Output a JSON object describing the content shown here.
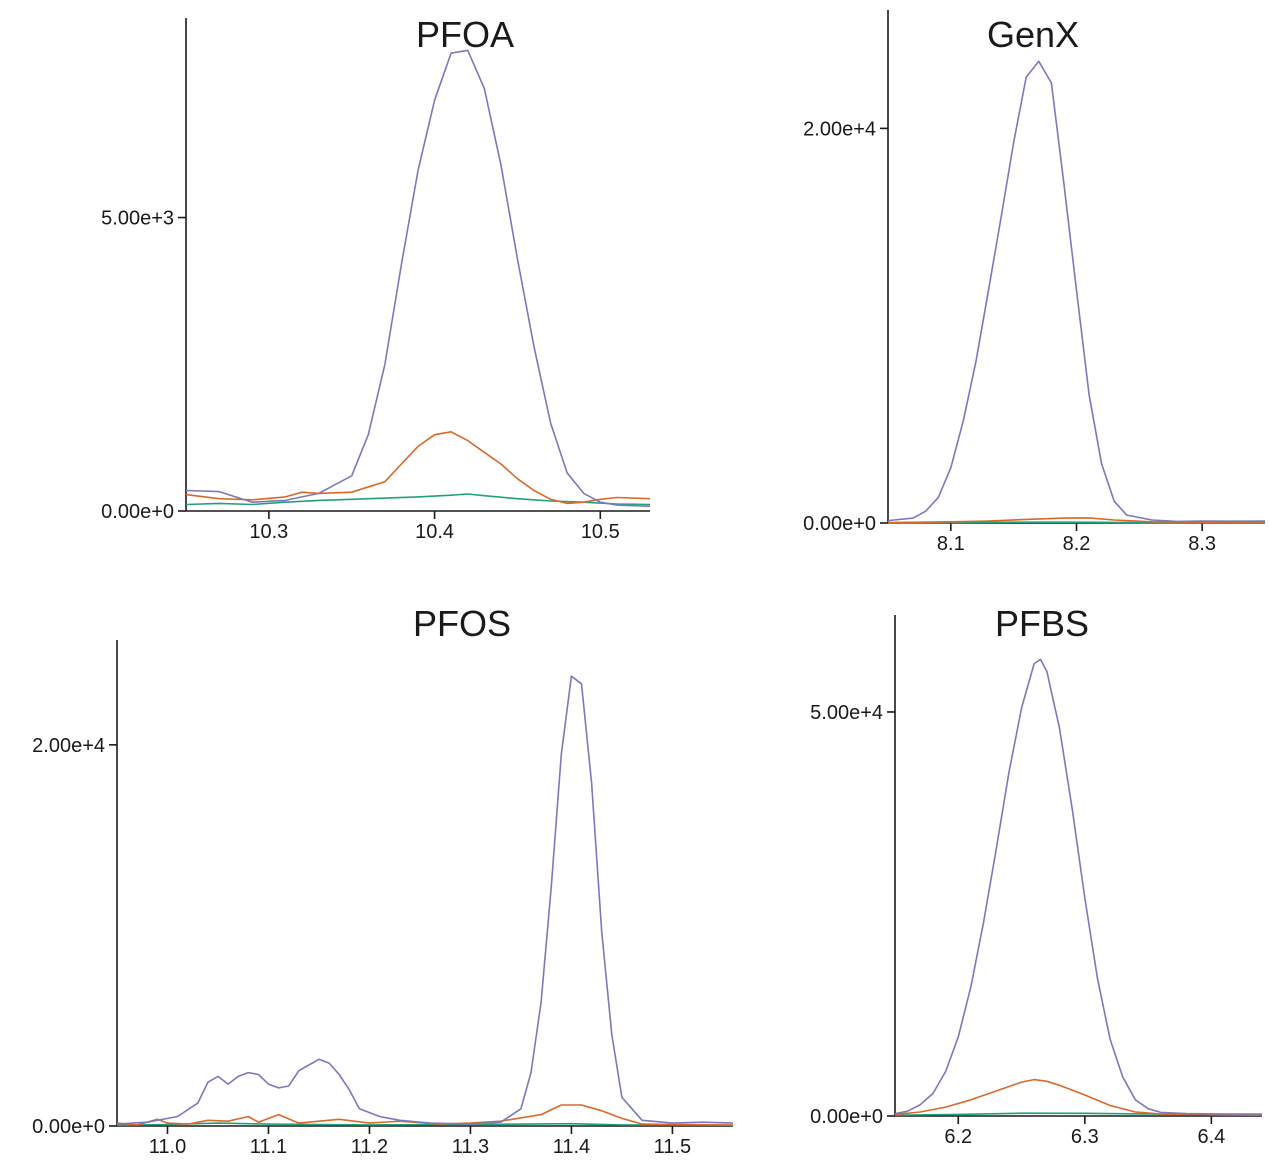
{
  "colors": {
    "series_1": "#7b78bd",
    "series_2": "#d9692a",
    "series_3": "#22a07e"
  },
  "chart_data": [
    {
      "type": "line",
      "title": "PFOA",
      "xlim": [
        10.25,
        10.53
      ],
      "ylim": [
        0,
        8400
      ],
      "x_ticks": [
        10.3,
        10.4,
        10.5
      ],
      "x_tick_labels": [
        "10.3",
        "10.4",
        "10.5"
      ],
      "y_ticks": [
        0,
        5000
      ],
      "y_tick_labels": [
        "0.00e+0",
        "5.00e+3"
      ],
      "series": [
        {
          "color_key": "series_1",
          "points": [
            [
              10.25,
              350
            ],
            [
              10.27,
              330
            ],
            [
              10.29,
              150
            ],
            [
              10.31,
              180
            ],
            [
              10.33,
              300
            ],
            [
              10.35,
              600
            ],
            [
              10.36,
              1300
            ],
            [
              10.37,
              2500
            ],
            [
              10.38,
              4200
            ],
            [
              10.39,
              5800
            ],
            [
              10.4,
              7000
            ],
            [
              10.41,
              7800
            ],
            [
              10.42,
              7850
            ],
            [
              10.43,
              7200
            ],
            [
              10.44,
              5900
            ],
            [
              10.45,
              4300
            ],
            [
              10.46,
              2800
            ],
            [
              10.47,
              1500
            ],
            [
              10.48,
              650
            ],
            [
              10.49,
              300
            ],
            [
              10.5,
              150
            ],
            [
              10.51,
              100
            ],
            [
              10.53,
              80
            ]
          ]
        },
        {
          "color_key": "series_2",
          "points": [
            [
              10.25,
              280
            ],
            [
              10.27,
              210
            ],
            [
              10.29,
              190
            ],
            [
              10.31,
              240
            ],
            [
              10.32,
              320
            ],
            [
              10.33,
              300
            ],
            [
              10.35,
              320
            ],
            [
              10.37,
              500
            ],
            [
              10.38,
              800
            ],
            [
              10.39,
              1100
            ],
            [
              10.4,
              1300
            ],
            [
              10.41,
              1350
            ],
            [
              10.42,
              1200
            ],
            [
              10.43,
              1000
            ],
            [
              10.44,
              800
            ],
            [
              10.45,
              550
            ],
            [
              10.46,
              350
            ],
            [
              10.47,
              200
            ],
            [
              10.48,
              130
            ],
            [
              10.49,
              150
            ],
            [
              10.5,
              200
            ],
            [
              10.51,
              230
            ],
            [
              10.53,
              210
            ]
          ]
        },
        {
          "color_key": "series_3",
          "points": [
            [
              10.25,
              110
            ],
            [
              10.27,
              130
            ],
            [
              10.29,
              110
            ],
            [
              10.31,
              150
            ],
            [
              10.33,
              180
            ],
            [
              10.35,
              200
            ],
            [
              10.37,
              220
            ],
            [
              10.39,
              240
            ],
            [
              10.41,
              270
            ],
            [
              10.42,
              290
            ],
            [
              10.43,
              260
            ],
            [
              10.45,
              210
            ],
            [
              10.47,
              170
            ],
            [
              10.49,
              150
            ],
            [
              10.51,
              120
            ],
            [
              10.53,
              110
            ]
          ]
        }
      ]
    },
    {
      "type": "line",
      "title": "GenX",
      "xlim": [
        8.05,
        8.35
      ],
      "ylim": [
        0,
        26000
      ],
      "x_ticks": [
        8.1,
        8.2,
        8.3
      ],
      "x_tick_labels": [
        "8.1",
        "8.2",
        "8.3"
      ],
      "y_ticks": [
        0,
        20000
      ],
      "y_tick_labels": [
        "0.00e+0",
        "2.00e+4"
      ],
      "series": [
        {
          "color_key": "series_1",
          "points": [
            [
              8.05,
              120
            ],
            [
              8.07,
              250
            ],
            [
              8.08,
              600
            ],
            [
              8.09,
              1300
            ],
            [
              8.1,
              2800
            ],
            [
              8.11,
              5200
            ],
            [
              8.12,
              8200
            ],
            [
              8.13,
              11800
            ],
            [
              8.14,
              15500
            ],
            [
              8.15,
              19300
            ],
            [
              8.16,
              22600
            ],
            [
              8.17,
              23400
            ],
            [
              8.18,
              22300
            ],
            [
              8.19,
              17200
            ],
            [
              8.2,
              11800
            ],
            [
              8.21,
              6500
            ],
            [
              8.22,
              3000
            ],
            [
              8.23,
              1100
            ],
            [
              8.24,
              400
            ],
            [
              8.26,
              150
            ],
            [
              8.28,
              80
            ],
            [
              8.3,
              100
            ],
            [
              8.32,
              90
            ],
            [
              8.35,
              100
            ]
          ]
        },
        {
          "color_key": "series_2",
          "points": [
            [
              8.05,
              20
            ],
            [
              8.1,
              60
            ],
            [
              8.13,
              100
            ],
            [
              8.16,
              180
            ],
            [
              8.19,
              250
            ],
            [
              8.21,
              260
            ],
            [
              8.23,
              150
            ],
            [
              8.26,
              60
            ],
            [
              8.3,
              40
            ],
            [
              8.35,
              50
            ]
          ]
        },
        {
          "color_key": "series_3",
          "points": [
            [
              8.05,
              10
            ],
            [
              8.1,
              30
            ],
            [
              8.15,
              40
            ],
            [
              8.2,
              40
            ],
            [
              8.25,
              20
            ],
            [
              8.3,
              10
            ],
            [
              8.35,
              10
            ]
          ]
        }
      ]
    },
    {
      "type": "line",
      "title": "PFOS",
      "xlim": [
        10.95,
        11.56
      ],
      "ylim": [
        0,
        25500
      ],
      "x_ticks": [
        11.0,
        11.1,
        11.2,
        11.3,
        11.4,
        11.5
      ],
      "x_tick_labels": [
        "11.0",
        "11.1",
        "11.2",
        "11.3",
        "11.4",
        "11.5"
      ],
      "y_ticks": [
        0,
        20000
      ],
      "y_tick_labels": [
        "0.00e+0",
        "2.00e+4"
      ],
      "series": [
        {
          "color_key": "series_1",
          "points": [
            [
              10.95,
              100
            ],
            [
              10.98,
              200
            ],
            [
              11.01,
              500
            ],
            [
              11.03,
              1200
            ],
            [
              11.04,
              2300
            ],
            [
              11.05,
              2600
            ],
            [
              11.06,
              2200
            ],
            [
              11.07,
              2600
            ],
            [
              11.08,
              2800
            ],
            [
              11.09,
              2700
            ],
            [
              11.1,
              2200
            ],
            [
              11.11,
              2000
            ],
            [
              11.12,
              2100
            ],
            [
              11.13,
              2900
            ],
            [
              11.14,
              3200
            ],
            [
              11.15,
              3500
            ],
            [
              11.16,
              3300
            ],
            [
              11.17,
              2700
            ],
            [
              11.18,
              1900
            ],
            [
              11.19,
              900
            ],
            [
              11.21,
              500
            ],
            [
              11.23,
              300
            ],
            [
              11.26,
              150
            ],
            [
              11.3,
              100
            ],
            [
              11.33,
              200
            ],
            [
              11.35,
              900
            ],
            [
              11.36,
              2800
            ],
            [
              11.37,
              6500
            ],
            [
              11.38,
              12500
            ],
            [
              11.39,
              19500
            ],
            [
              11.4,
              23600
            ],
            [
              11.41,
              23200
            ],
            [
              11.42,
              18000
            ],
            [
              11.43,
              10200
            ],
            [
              11.44,
              4800
            ],
            [
              11.45,
              1500
            ],
            [
              11.47,
              300
            ],
            [
              11.5,
              150
            ],
            [
              11.53,
              200
            ],
            [
              11.56,
              150
            ]
          ]
        },
        {
          "color_key": "series_2",
          "points": [
            [
              10.95,
              150
            ],
            [
              10.97,
              50
            ],
            [
              10.99,
              350
            ],
            [
              11.0,
              150
            ],
            [
              11.02,
              100
            ],
            [
              11.04,
              300
            ],
            [
              11.06,
              250
            ],
            [
              11.08,
              500
            ],
            [
              11.09,
              200
            ],
            [
              11.11,
              600
            ],
            [
              11.13,
              150
            ],
            [
              11.15,
              250
            ],
            [
              11.17,
              350
            ],
            [
              11.2,
              150
            ],
            [
              11.23,
              250
            ],
            [
              11.27,
              100
            ],
            [
              11.3,
              150
            ],
            [
              11.33,
              250
            ],
            [
              11.37,
              600
            ],
            [
              11.39,
              1100
            ],
            [
              11.41,
              1100
            ],
            [
              11.43,
              800
            ],
            [
              11.45,
              400
            ],
            [
              11.47,
              100
            ],
            [
              11.5,
              80
            ],
            [
              11.56,
              50
            ]
          ]
        },
        {
          "color_key": "series_3",
          "points": [
            [
              10.95,
              40
            ],
            [
              11.0,
              80
            ],
            [
              11.05,
              150
            ],
            [
              11.1,
              100
            ],
            [
              11.15,
              80
            ],
            [
              11.2,
              60
            ],
            [
              11.3,
              80
            ],
            [
              11.4,
              120
            ],
            [
              11.45,
              60
            ],
            [
              11.5,
              50
            ],
            [
              11.56,
              40
            ]
          ]
        }
      ]
    },
    {
      "type": "line",
      "title": "PFBS",
      "xlim": [
        6.15,
        6.44
      ],
      "ylim": [
        0,
        62000
      ],
      "x_ticks": [
        6.2,
        6.3,
        6.4
      ],
      "x_tick_labels": [
        "6.2",
        "6.3",
        "6.4"
      ],
      "y_ticks": [
        0,
        50000
      ],
      "y_tick_labels": [
        "0.00e+0",
        "5.00e+4"
      ],
      "series": [
        {
          "color_key": "series_1",
          "points": [
            [
              6.15,
              300
            ],
            [
              6.16,
              600
            ],
            [
              6.17,
              1400
            ],
            [
              6.18,
              2800
            ],
            [
              6.19,
              5500
            ],
            [
              6.2,
              9800
            ],
            [
              6.21,
              16000
            ],
            [
              6.22,
              24000
            ],
            [
              6.23,
              33000
            ],
            [
              6.24,
              42500
            ],
            [
              6.25,
              50500
            ],
            [
              6.26,
              56000
            ],
            [
              6.265,
              56500
            ],
            [
              6.27,
              55000
            ],
            [
              6.28,
              48000
            ],
            [
              6.29,
              38000
            ],
            [
              6.3,
              27000
            ],
            [
              6.31,
              17000
            ],
            [
              6.32,
              9500
            ],
            [
              6.33,
              4800
            ],
            [
              6.34,
              2000
            ],
            [
              6.35,
              900
            ],
            [
              6.36,
              450
            ],
            [
              6.38,
              300
            ],
            [
              6.41,
              250
            ],
            [
              6.44,
              250
            ]
          ]
        },
        {
          "color_key": "series_2",
          "points": [
            [
              6.15,
              200
            ],
            [
              6.17,
              500
            ],
            [
              6.19,
              1100
            ],
            [
              6.21,
              2000
            ],
            [
              6.23,
              3100
            ],
            [
              6.25,
              4200
            ],
            [
              6.26,
              4500
            ],
            [
              6.27,
              4300
            ],
            [
              6.28,
              3800
            ],
            [
              6.3,
              2600
            ],
            [
              6.32,
              1300
            ],
            [
              6.34,
              500
            ],
            [
              6.36,
              250
            ],
            [
              6.4,
              150
            ],
            [
              6.44,
              120
            ]
          ]
        },
        {
          "color_key": "series_3",
          "points": [
            [
              6.15,
              100
            ],
            [
              6.2,
              200
            ],
            [
              6.25,
              350
            ],
            [
              6.3,
              330
            ],
            [
              6.35,
              250
            ],
            [
              6.4,
              150
            ],
            [
              6.44,
              100
            ]
          ]
        }
      ]
    }
  ]
}
